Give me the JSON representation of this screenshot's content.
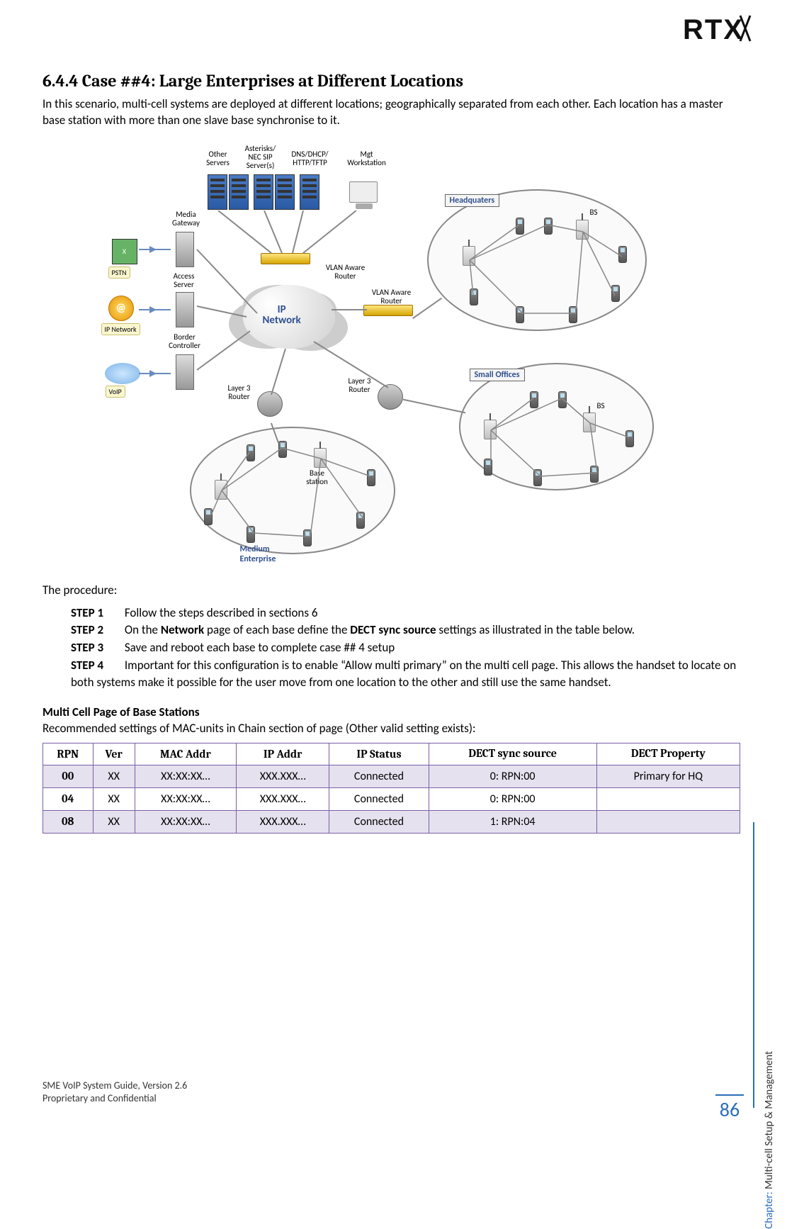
{
  "logo": "RTX",
  "heading": "6.4.4  Case ##4: Large Enterprises at Different Locations",
  "intro": "In this scenario, multi-cell systems are deployed at different locations; geographically separated from each other. Each location has a master base station with more than one slave base synchronise to it.",
  "diagram": {
    "labels": {
      "other_servers": "Other\nServers",
      "sip_servers": "Asterisks/\nNEC SIP\nServer(s)",
      "dns": "DNS/DHCP/\nHTTP/TFTP",
      "mgt": "Mgt\nWorkstation",
      "media_gw": "Media\nGateway",
      "access_srv": "Access\nServer",
      "border_ctrl": "Border\nController",
      "pstn": "PSTN",
      "ip_network_chip": "IP Network",
      "voip": "VoIP",
      "ip_network": "IP\nNetwork",
      "vlan_router": "VLAN Aware\nRouter",
      "layer3": "Layer 3\nRouter",
      "base_station": "Base\nstation",
      "hq": "Headquaters",
      "small_offices": "Small Offices",
      "medium": "Medium\nEnterprise",
      "bs": "BS"
    }
  },
  "procedure_title": "The procedure:",
  "steps": [
    {
      "label": "STEP 1",
      "text": "Follow the steps described in sections 6"
    },
    {
      "label": "STEP 2",
      "text": "On the ",
      "text2": " page of each base define the ",
      "text3": " settings as illustrated in the table below.",
      "bold1": "Network",
      "bold2": "DECT sync source"
    },
    {
      "label": "STEP 3",
      "text": "Save and reboot each base to complete case ## 4 setup"
    },
    {
      "label": "STEP 4",
      "text": "Important for this configuration is to enable “Allow multi primary” on the multi cell page. This allows the handset to locate on both systems make it possible for the user move from one location to the other and still use the same handset."
    }
  ],
  "table_title": "Multi Cell Page of Base Stations",
  "table_subtitle": "Recommended settings of MAC-units in Chain section of page (Other valid setting exists):",
  "table": {
    "columns": [
      "RPN",
      "Ver",
      "MAC Addr",
      "IP Addr",
      "IP Status",
      "DECT sync source",
      "DECT Property"
    ],
    "rows": [
      {
        "rpn": "00",
        "ver": "XX",
        "mac": "XX:XX:XX…",
        "ip": "XXX.XXX…",
        "status": "Connected",
        "sync": "0: RPN:00",
        "prop": "Primary for HQ",
        "shaded": true
      },
      {
        "rpn": "04",
        "ver": "XX",
        "mac": "XX:XX:XX…",
        "ip": "XXX.XXX…",
        "status": "Connected",
        "sync": "0: RPN:00",
        "prop": "",
        "shaded": false
      },
      {
        "rpn": "08",
        "ver": "XX",
        "mac": "XX:XX:XX…",
        "ip": "XXX.XXX…",
        "status": "Connected",
        "sync": "1: RPN:04",
        "prop": "",
        "shaded": true
      }
    ]
  },
  "footer": {
    "line1": "SME VoIP System Guide, Version 2.6",
    "line2": "Proprietary and Confidential",
    "chapter_label": "Chapter:",
    "chapter_text": " Multi-cell Setup & Management",
    "page_num": "86"
  },
  "colors": {
    "table_border": "#7a5fa8",
    "shaded_row": "#e6e1ee",
    "accent": "#2a6ebb"
  }
}
